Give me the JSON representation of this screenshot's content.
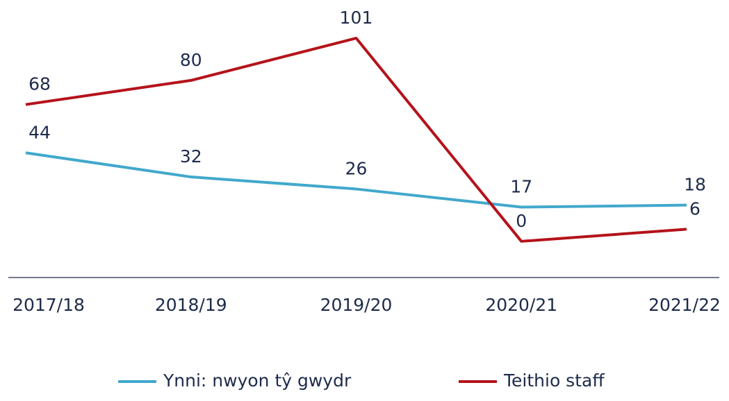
{
  "chart_data": {
    "type": "line",
    "categories": [
      "2017/18",
      "2018/19",
      "2019/20",
      "2020/21",
      "2021/22"
    ],
    "series": [
      {
        "name": "Ynni: nwyon tŷ gwydr",
        "color": "#41a8cc",
        "values": [
          44,
          32,
          26,
          17,
          18
        ]
      },
      {
        "name": "Teithio staff",
        "color": "#b5121b",
        "values": [
          68,
          80,
          101,
          0,
          6
        ]
      }
    ],
    "ylim": [
      -18,
      101
    ],
    "grid": false,
    "legend": "bottom"
  }
}
